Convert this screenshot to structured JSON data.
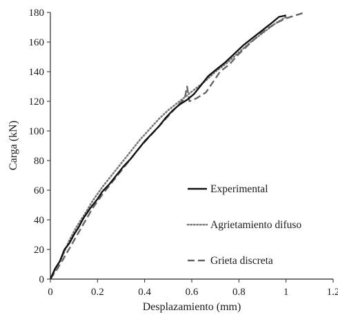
{
  "chart_data": {
    "type": "line",
    "xlabel": "Desplazamiento (mm)",
    "ylabel": "Carga (kN)",
    "xlim": [
      0,
      1.2
    ],
    "ylim": [
      0,
      180
    ],
    "xticks": [
      "0",
      "0.2",
      "0.4",
      "0.6",
      "0.8",
      "1",
      "1.2"
    ],
    "yticks": [
      "0",
      "20",
      "40",
      "60",
      "80",
      "100",
      "120",
      "140",
      "160",
      "180"
    ],
    "grid": false,
    "legend_position": "bottom-right",
    "series": [
      {
        "name": "Experimental",
        "style": "solid",
        "color": "#111111",
        "points": [
          [
            0,
            0
          ],
          [
            0.02,
            7
          ],
          [
            0.04,
            12
          ],
          [
            0.06,
            20
          ],
          [
            0.08,
            24
          ],
          [
            0.1,
            30
          ],
          [
            0.12,
            35
          ],
          [
            0.14,
            41
          ],
          [
            0.17,
            48
          ],
          [
            0.2,
            54
          ],
          [
            0.22,
            59
          ],
          [
            0.25,
            64
          ],
          [
            0.28,
            70
          ],
          [
            0.31,
            76
          ],
          [
            0.34,
            81
          ],
          [
            0.37,
            87
          ],
          [
            0.4,
            93
          ],
          [
            0.43,
            98
          ],
          [
            0.46,
            103
          ],
          [
            0.49,
            109
          ],
          [
            0.52,
            114
          ],
          [
            0.55,
            118
          ],
          [
            0.58,
            121
          ],
          [
            0.61,
            125
          ],
          [
            0.64,
            131
          ],
          [
            0.67,
            137
          ],
          [
            0.7,
            141
          ],
          [
            0.74,
            146
          ],
          [
            0.78,
            152
          ],
          [
            0.82,
            158
          ],
          [
            0.86,
            163
          ],
          [
            0.9,
            168
          ],
          [
            0.94,
            173
          ],
          [
            0.97,
            177
          ],
          [
            1.0,
            178
          ]
        ]
      },
      {
        "name": "Agrietamiento difuso",
        "style": "dotted",
        "color": "#777777",
        "points": [
          [
            0,
            0
          ],
          [
            0.02,
            6
          ],
          [
            0.05,
            15
          ],
          [
            0.08,
            26
          ],
          [
            0.11,
            35
          ],
          [
            0.15,
            45
          ],
          [
            0.18,
            53
          ],
          [
            0.22,
            62
          ],
          [
            0.26,
            70
          ],
          [
            0.3,
            78
          ],
          [
            0.34,
            86
          ],
          [
            0.38,
            94
          ],
          [
            0.42,
            101
          ],
          [
            0.46,
            108
          ],
          [
            0.5,
            114
          ],
          [
            0.54,
            119
          ],
          [
            0.58,
            124
          ],
          [
            0.62,
            129
          ],
          [
            0.66,
            134
          ],
          [
            0.7,
            140
          ],
          [
            0.75,
            146
          ],
          [
            0.8,
            153
          ],
          [
            0.85,
            160
          ],
          [
            0.9,
            166
          ],
          [
            0.95,
            172
          ],
          [
            1.0,
            177
          ]
        ]
      },
      {
        "name": "Grieta discreta",
        "style": "dashed",
        "color": "#666666",
        "points": [
          [
            0,
            0
          ],
          [
            0.03,
            7
          ],
          [
            0.06,
            15
          ],
          [
            0.1,
            26
          ],
          [
            0.14,
            37
          ],
          [
            0.18,
            48
          ],
          [
            0.22,
            57
          ],
          [
            0.26,
            65
          ],
          [
            0.3,
            73
          ],
          [
            0.34,
            81
          ],
          [
            0.38,
            89
          ],
          [
            0.42,
            96
          ],
          [
            0.46,
            103
          ],
          [
            0.5,
            110
          ],
          [
            0.54,
            117
          ],
          [
            0.57,
            122
          ],
          [
            0.58,
            130
          ],
          [
            0.59,
            120
          ],
          [
            0.62,
            122
          ],
          [
            0.66,
            126
          ],
          [
            0.69,
            133
          ],
          [
            0.72,
            140
          ],
          [
            0.76,
            145
          ],
          [
            0.8,
            152
          ],
          [
            0.84,
            158
          ],
          [
            0.88,
            164
          ],
          [
            0.92,
            169
          ],
          [
            0.96,
            173
          ],
          [
            1.0,
            176
          ],
          [
            1.04,
            178
          ],
          [
            1.08,
            180
          ]
        ]
      }
    ]
  }
}
